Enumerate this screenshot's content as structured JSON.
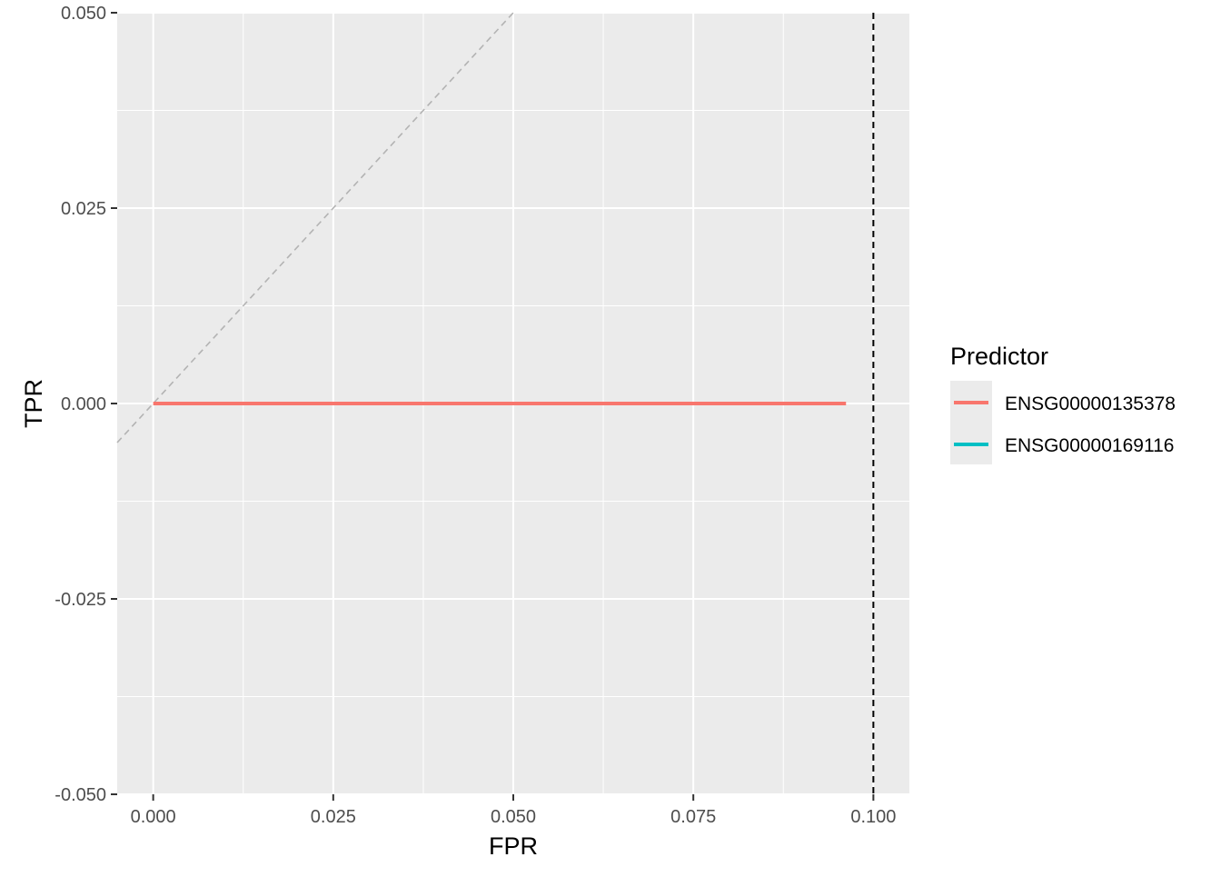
{
  "chart_data": {
    "type": "line",
    "title": "",
    "xlabel": "FPR",
    "ylabel": "TPR",
    "xlim": [
      -0.005,
      0.105
    ],
    "ylim": [
      -0.05,
      0.05
    ],
    "x_ticks": [
      0.0,
      0.025,
      0.05,
      0.075,
      0.1
    ],
    "x_tick_labels": [
      "0.000",
      "0.025",
      "0.050",
      "0.075",
      "0.100"
    ],
    "y_ticks": [
      -0.05,
      -0.025,
      0.0,
      0.025,
      0.05
    ],
    "y_tick_labels": [
      "-0.050",
      "-0.025",
      "0.000",
      "0.025",
      "0.050"
    ],
    "grid": true,
    "panel_background": "#ebebeb",
    "legend": {
      "title": "Predictor",
      "placement": "right"
    },
    "series": [
      {
        "name": "ENSG00000135378",
        "color": "#f8766d",
        "x": [
          0.0,
          0.0962
        ],
        "y": [
          0.0,
          0.0
        ]
      },
      {
        "name": "ENSG00000169116",
        "color": "#00bfc4",
        "x": [],
        "y": []
      }
    ],
    "reference_lines": [
      {
        "kind": "diagonal",
        "style": "dashed",
        "color": "#b3b3b3",
        "x": [
          -0.005,
          0.05
        ],
        "y": [
          -0.005,
          0.05
        ]
      },
      {
        "kind": "vertical",
        "style": "dashed",
        "color": "#000000",
        "x": 0.1
      }
    ]
  }
}
